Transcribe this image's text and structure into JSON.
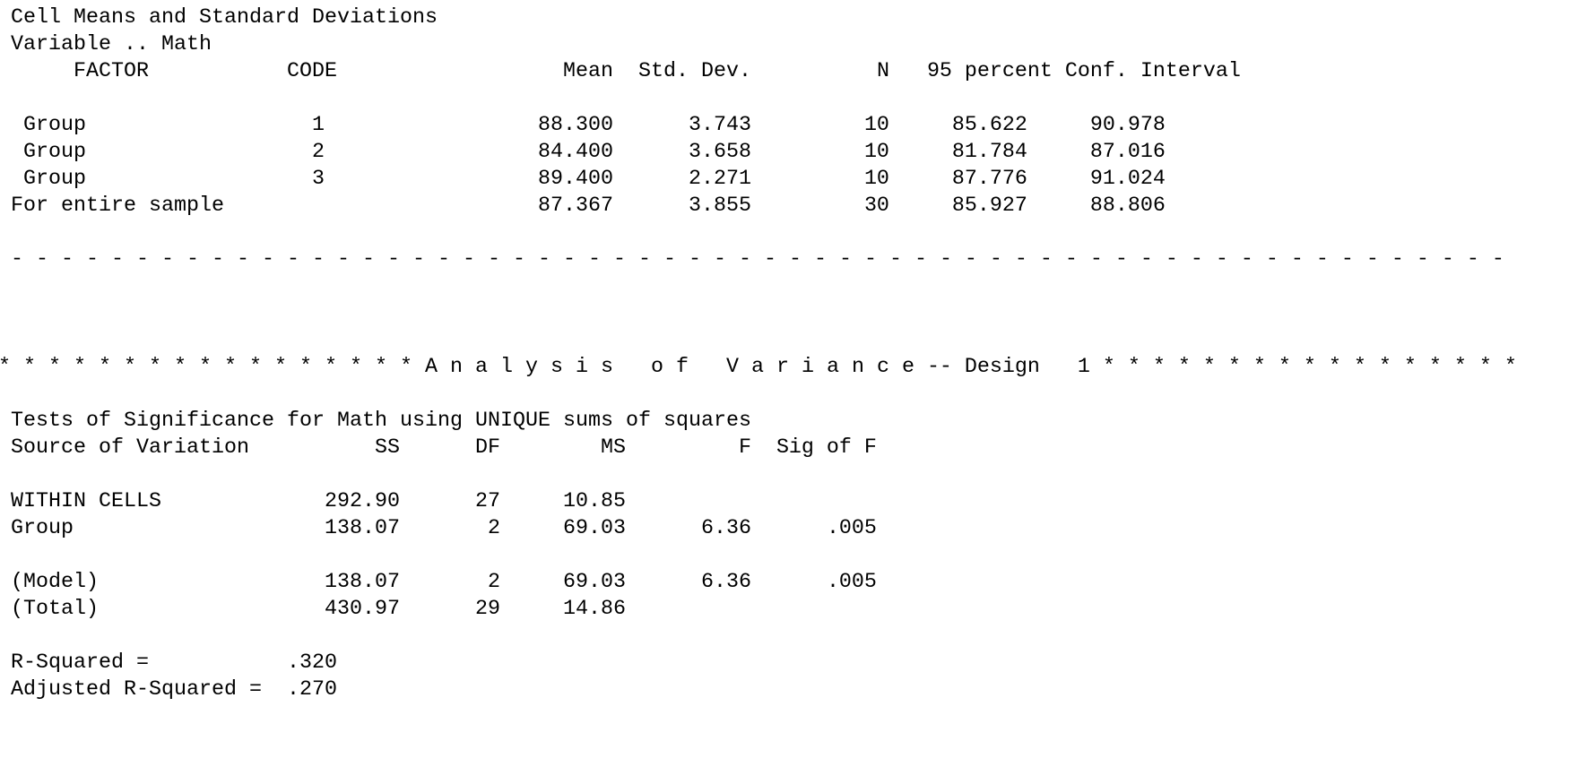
{
  "cell_means": {
    "title": "Cell Means and Standard Deviations",
    "variable_line": "Variable .. Math",
    "headers": {
      "factor": "FACTOR",
      "code": "CODE",
      "mean": "Mean",
      "std_dev": "Std. Dev.",
      "n": "N",
      "ci": "95 percent Conf. Interval"
    },
    "rows": [
      {
        "factor": "Group",
        "code": "1",
        "mean": "88.300",
        "std_dev": "3.743",
        "n": "10",
        "ci_low": "85.622",
        "ci_high": "90.978"
      },
      {
        "factor": "Group",
        "code": "2",
        "mean": "84.400",
        "std_dev": "3.658",
        "n": "10",
        "ci_low": "81.784",
        "ci_high": "87.016"
      },
      {
        "factor": "Group",
        "code": "3",
        "mean": "89.400",
        "std_dev": "2.271",
        "n": "10",
        "ci_low": "87.776",
        "ci_high": "91.024"
      }
    ],
    "total": {
      "label": "For entire sample",
      "mean": "87.367",
      "std_dev": "3.855",
      "n": "30",
      "ci_low": "85.927",
      "ci_high": "88.806"
    }
  },
  "separator": "- - - - - - - - - - - - - - - - - - - - - - - - - - - - - - - - - - - - - - - - - - - - - - - - - - - - - - - - - - - -",
  "anova": {
    "banner": "* * * * * * * * * * * * * * * * * A n a l y s i s   o f   V a r i a n c e -- Design   1 * * * * * * * * * * * * * * * * *",
    "tests_title": "Tests of Significance for Math using UNIQUE sums of squares",
    "headers": {
      "source": "Source of Variation",
      "ss": "SS",
      "df": "DF",
      "ms": "MS",
      "f": "F",
      "sig": "Sig of F"
    },
    "rows": [
      {
        "source": "WITHIN CELLS",
        "ss": "292.90",
        "df": "27",
        "ms": "10.85",
        "f": "",
        "sig": ""
      },
      {
        "source": "Group",
        "ss": "138.07",
        "df": "2",
        "ms": "69.03",
        "f": "6.36",
        "sig": ".005"
      },
      {
        "source": "(Model)",
        "ss": "138.07",
        "df": "2",
        "ms": "69.03",
        "f": "6.36",
        "sig": ".005"
      },
      {
        "source": "(Total)",
        "ss": "430.97",
        "df": "29",
        "ms": "14.86",
        "f": "",
        "sig": ""
      }
    ],
    "r_squared_label": "R-Squared =",
    "r_squared": ".320",
    "adj_r_squared_label": "Adjusted R-Squared =",
    "adj_r_squared": ".270"
  }
}
